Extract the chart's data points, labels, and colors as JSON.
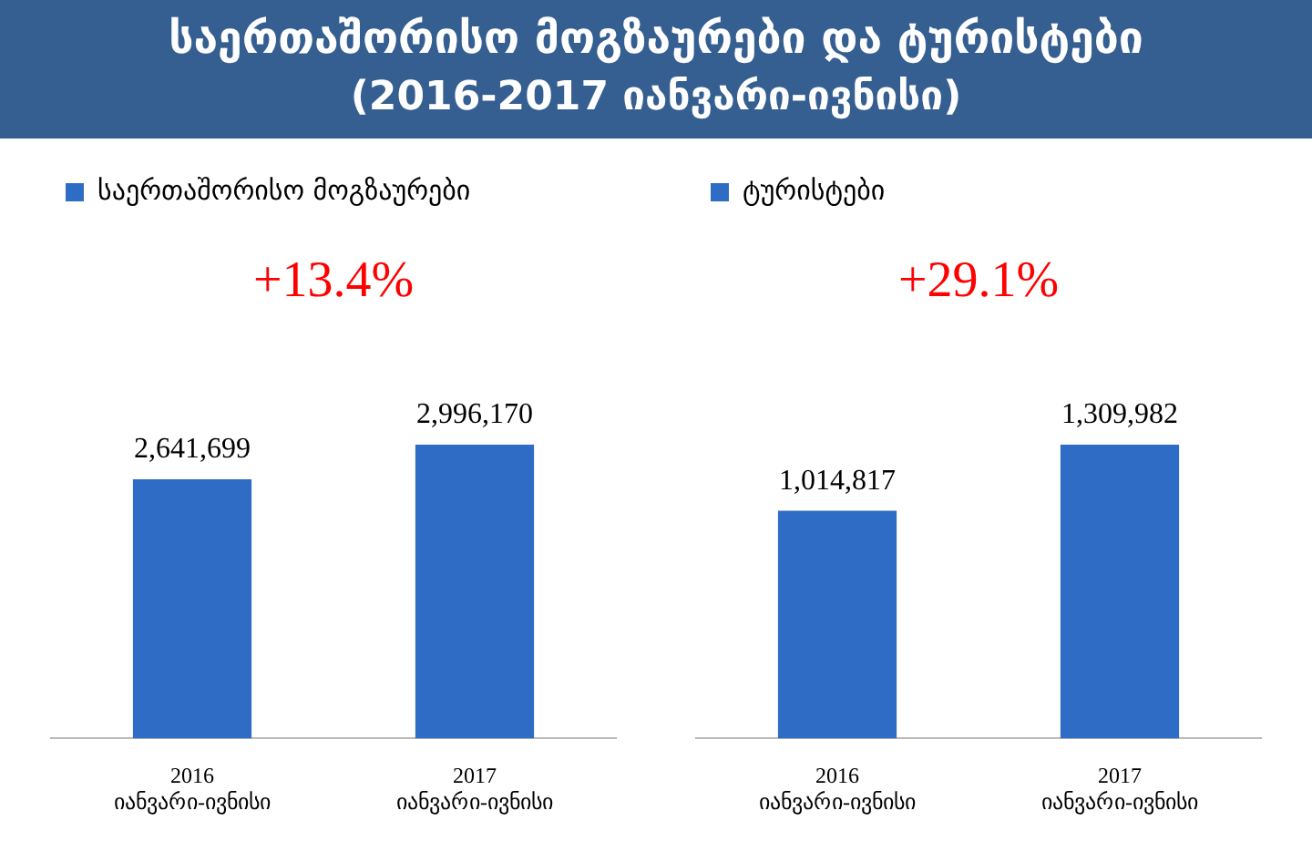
{
  "chart_data": [
    {
      "type": "bar",
      "title": "საერთაშორისო მოგზაურები და ტურისტები",
      "subtitle": "(2016-2017 იანვარი-ივნისი)",
      "categories": [
        "2016\nიანვარი-ივნისი",
        "2017\nიანვარი-ივნისი"
      ],
      "series": [
        {
          "name": "საერთაშორისო მოგზაურები",
          "color": "#2f6cc6",
          "values": [
            2641699,
            2996170
          ],
          "value_labels": [
            "2,641,699",
            "2,996,170"
          ]
        }
      ],
      "annotations": [
        "+13.4%"
      ],
      "legend": "top",
      "grid": false
    },
    {
      "type": "bar",
      "categories": [
        "2016\nიანვარი-ივნისი",
        "2017\nიანვარი-ივნისი"
      ],
      "series": [
        {
          "name": "ტურისტები",
          "color": "#2f6cc6",
          "values": [
            1014817,
            1309982
          ],
          "value_labels": [
            "1,014,817",
            "1,309,982"
          ]
        }
      ],
      "annotations": [
        "+29.1%"
      ],
      "legend": "top",
      "grid": false
    }
  ]
}
